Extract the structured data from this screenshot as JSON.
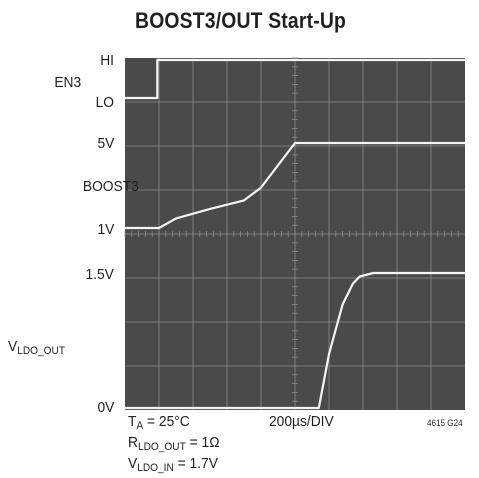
{
  "title": "BOOST3/OUT Start-Up",
  "channels": {
    "en3": {
      "name": "EN3",
      "hi": "HI",
      "lo": "LO"
    },
    "boost3": {
      "name": "BOOST3",
      "top": "5V",
      "bottom": "1V"
    },
    "vldo": {
      "name_main": "V",
      "name_sub": "LDO_OUT",
      "top": "1.5V",
      "bottom": "0V"
    }
  },
  "notes": {
    "ta_main": "T",
    "ta_sub": "A",
    "ta_rest": " = 25°C",
    "timebase": "200µs/DIV",
    "r_main": "R",
    "r_sub": "LDO_OUT",
    "r_rest": " = 1Ω",
    "vin_main": "V",
    "vin_sub": "LDO_IN",
    "vin_rest": " = 1.7V",
    "figure_id": "4615 G24"
  },
  "colors": {
    "screen": "#4a4a4a",
    "grid": "#8c8c8c",
    "trace": "#f4f4f4"
  },
  "chart_data": {
    "type": "line",
    "title": "BOOST3/OUT Start-Up",
    "x_unit": "µs",
    "x_range": [
      0,
      2000
    ],
    "x_divisions": 10,
    "y_divisions": 8,
    "series": [
      {
        "name": "EN3",
        "unit": "logic",
        "y_range": [
          "LO",
          "HI"
        ],
        "x": [
          0,
          190,
          190,
          2000
        ],
        "y": [
          0,
          0,
          1,
          1
        ]
      },
      {
        "name": "BOOST3",
        "unit": "V",
        "y_range": [
          1,
          5
        ],
        "x": [
          0,
          200,
          300,
          500,
          700,
          800,
          1000,
          2000
        ],
        "y": [
          1,
          1,
          1.45,
          1.9,
          2.3,
          2.9,
          5,
          5
        ]
      },
      {
        "name": "VLDO_OUT",
        "unit": "V",
        "y_range": [
          0,
          1.5
        ],
        "x": [
          0,
          1140,
          1200,
          1280,
          1340,
          1380,
          1460,
          2000
        ],
        "y": [
          0,
          0,
          0.6,
          1.15,
          1.38,
          1.46,
          1.5,
          1.5
        ]
      }
    ]
  }
}
